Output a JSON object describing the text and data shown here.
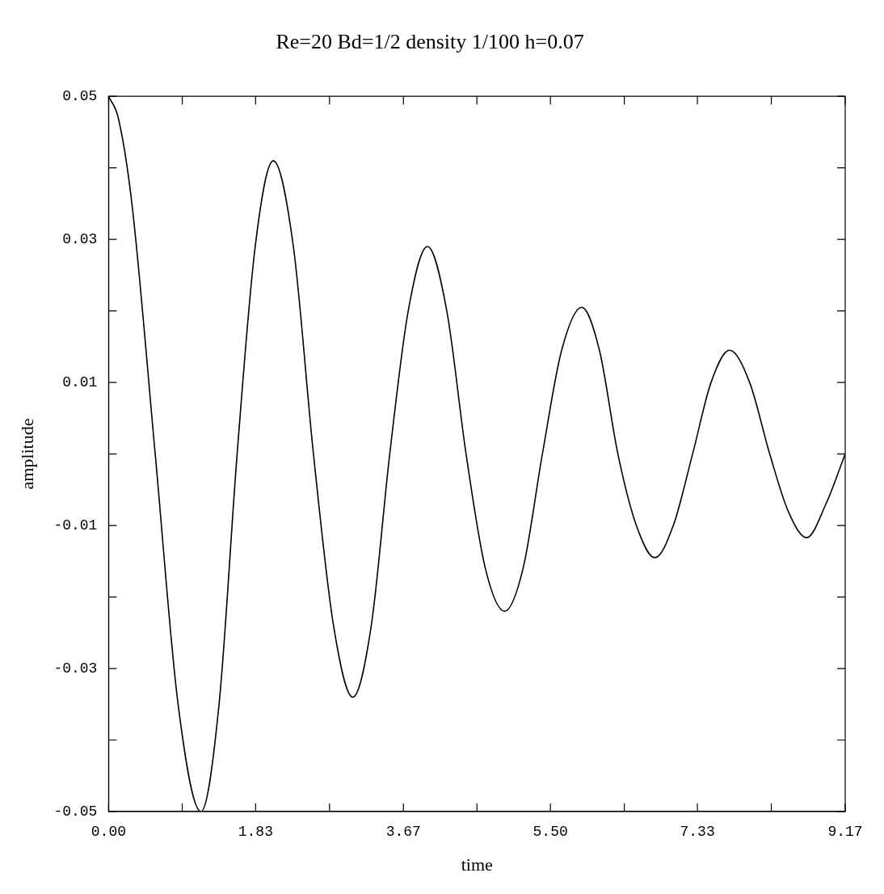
{
  "chart_data": {
    "type": "line",
    "title": "Re=20 Bd=1/2 density 1/100 h=0.07",
    "xlabel": "time",
    "ylabel": "amplitude",
    "xlim": [
      0,
      9.17
    ],
    "ylim": [
      -0.05,
      0.05
    ],
    "xticks": [
      {
        "value": 0,
        "label": "0.00"
      },
      {
        "value": 0.917,
        "label": null
      },
      {
        "value": 1.83,
        "label": "1.83"
      },
      {
        "value": 2.75,
        "label": null
      },
      {
        "value": 3.67,
        "label": "3.67"
      },
      {
        "value": 4.585,
        "label": null
      },
      {
        "value": 5.5,
        "label": "5.50"
      },
      {
        "value": 6.42,
        "label": null
      },
      {
        "value": 7.33,
        "label": "7.33"
      },
      {
        "value": 8.25,
        "label": null
      },
      {
        "value": 9.17,
        "label": "9.17"
      }
    ],
    "yticks": [
      {
        "value": -0.05,
        "label": "-0.05"
      },
      {
        "value": -0.04,
        "label": null
      },
      {
        "value": -0.03,
        "label": "-0.03"
      },
      {
        "value": -0.02,
        "label": null
      },
      {
        "value": -0.01,
        "label": "-0.01"
      },
      {
        "value": 0,
        "label": null
      },
      {
        "value": 0.01,
        "label": "0.01"
      },
      {
        "value": 0.02,
        "label": null
      },
      {
        "value": 0.03,
        "label": "0.03"
      },
      {
        "value": 0.04,
        "label": null
      },
      {
        "value": 0.05,
        "label": "0.05"
      }
    ],
    "grid": false,
    "legend": false,
    "marker": "none",
    "line_style": "solid",
    "series": [
      {
        "color": "#000000",
        "x": [
          0,
          0.12,
          0.29,
          0.58,
          0.865,
          1.15,
          1.375,
          1.6,
          1.825,
          2.05,
          2.3,
          2.55,
          2.8,
          3.04,
          3.27,
          3.5,
          3.73,
          3.97,
          4.21,
          4.45,
          4.69,
          4.93,
          5.16,
          5.4,
          5.64,
          5.89,
          6.11,
          6.34,
          6.57,
          6.8,
          7.03,
          7.27,
          7.5,
          7.73,
          7.98,
          8.23,
          8.46,
          8.69,
          8.93,
          9.17
        ],
        "values": [
          0.05,
          0.047,
          0.035,
          0,
          -0.035,
          -0.05,
          -0.035,
          0,
          0.029,
          0.041,
          0.029,
          0,
          -0.024,
          -0.034,
          -0.024,
          0,
          0.02,
          0.029,
          0.02,
          0,
          -0.016,
          -0.022,
          -0.016,
          0,
          0.0145,
          0.0205,
          0.0145,
          0,
          -0.01,
          -0.0145,
          -0.01,
          0,
          0.01,
          0.0145,
          0.01,
          0,
          -0.008,
          -0.0117,
          -0.007,
          0
        ]
      }
    ]
  }
}
